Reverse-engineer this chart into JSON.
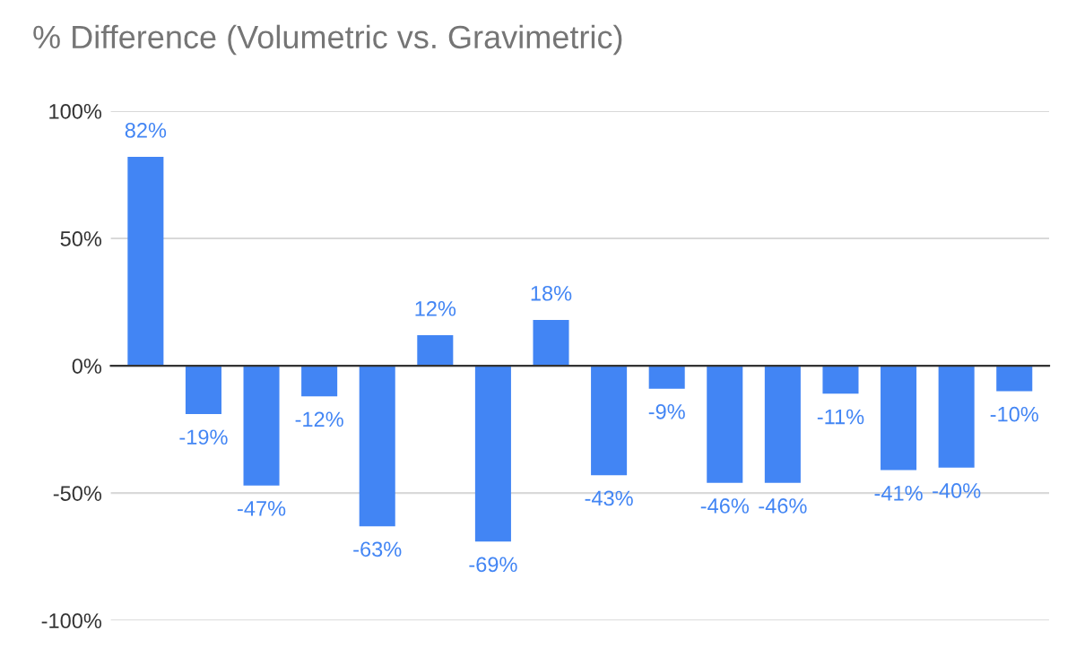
{
  "chart_data": {
    "type": "bar",
    "title": "% Difference (Volumetric vs. Gravimetric)",
    "categories": [
      null,
      null,
      null,
      null,
      null,
      null,
      null,
      null,
      null,
      null,
      null,
      null,
      null,
      null,
      null,
      null
    ],
    "series": [
      {
        "color": "#4285f4",
        "values": [
          82,
          -19,
          -47,
          -12,
          -63,
          12,
          -69,
          18,
          -43,
          -9,
          -46,
          -46,
          -11,
          -41,
          -40,
          -10
        ],
        "value_labels": [
          "82%",
          "-19%",
          "-47%",
          "-12%",
          "-63%",
          "12%",
          "-69%",
          "18%",
          "-43%",
          "-9%",
          "-46%",
          "-46%",
          "-11%",
          "-41%",
          "-40%",
          "-10%"
        ]
      }
    ],
    "ylim": [
      -100,
      100
    ],
    "yticks": [
      {
        "value": -100,
        "label": "-100%"
      },
      {
        "value": -50,
        "label": "-50%"
      },
      {
        "value": 0,
        "label": "0%"
      },
      {
        "value": 50,
        "label": "50%"
      },
      {
        "value": 100,
        "label": "100%"
      }
    ],
    "grid": "y",
    "legend": false,
    "tick_labels": "y"
  }
}
